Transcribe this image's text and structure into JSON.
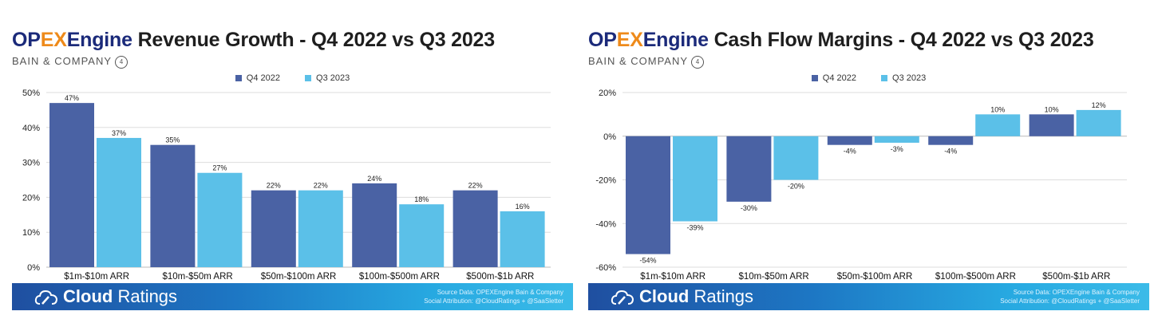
{
  "colors": {
    "q4_2022": "#4a62a4",
    "q3_2023": "#5bc0e8"
  },
  "footer": {
    "brand_bold": "Cloud",
    "brand_light": "Ratings",
    "source": "Source Data: OPEXEngine Bain & Company",
    "attribution": "Social Attribution: @CloudRatings + @SaaSletter"
  },
  "chart_data": [
    {
      "type": "bar",
      "logo": {
        "op": "OP",
        "ex": "EX",
        "engine": "Engine"
      },
      "title": "Revenue Growth - Q4 2022 vs Q3 2023",
      "subtitle": "BAIN & COMPANY",
      "subtitle_icon": "4",
      "categories": [
        "$1m-$10m ARR",
        "$10m-$50m ARR",
        "$50m-$100m ARR",
        "$100m-$500m ARR",
        "$500m-$1b ARR"
      ],
      "series": [
        {
          "name": "Q4 2022",
          "values": [
            47,
            35,
            22,
            24,
            22
          ]
        },
        {
          "name": "Q3 2023",
          "values": [
            37,
            27,
            22,
            18,
            16
          ]
        }
      ],
      "ylim": [
        0,
        50
      ],
      "yticks": [
        0,
        10,
        20,
        30,
        40,
        50
      ],
      "ytick_labels": [
        "0%",
        "10%",
        "20%",
        "30%",
        "40%",
        "50%"
      ],
      "legend": "top-center",
      "grid": true
    },
    {
      "type": "bar",
      "logo": {
        "op": "OP",
        "ex": "EX",
        "engine": "Engine"
      },
      "title": "Cash Flow Margins - Q4 2022 vs Q3 2023",
      "subtitle": "BAIN & COMPANY",
      "subtitle_icon": "4",
      "categories": [
        "$1m-$10m ARR",
        "$10m-$50m ARR",
        "$50m-$100m ARR",
        "$100m-$500m ARR",
        "$500m-$1b ARR"
      ],
      "series": [
        {
          "name": "Q4 2022",
          "values": [
            -54,
            -30,
            -4,
            -4,
            10
          ]
        },
        {
          "name": "Q3 2023",
          "values": [
            -39,
            -20,
            -3,
            10,
            12
          ]
        }
      ],
      "ylim": [
        -60,
        20
      ],
      "yticks": [
        -60,
        -40,
        -20,
        0,
        20
      ],
      "ytick_labels": [
        "-60%",
        "-40%",
        "-20%",
        "0%",
        "20%"
      ],
      "legend": "top-center",
      "grid": true
    }
  ]
}
